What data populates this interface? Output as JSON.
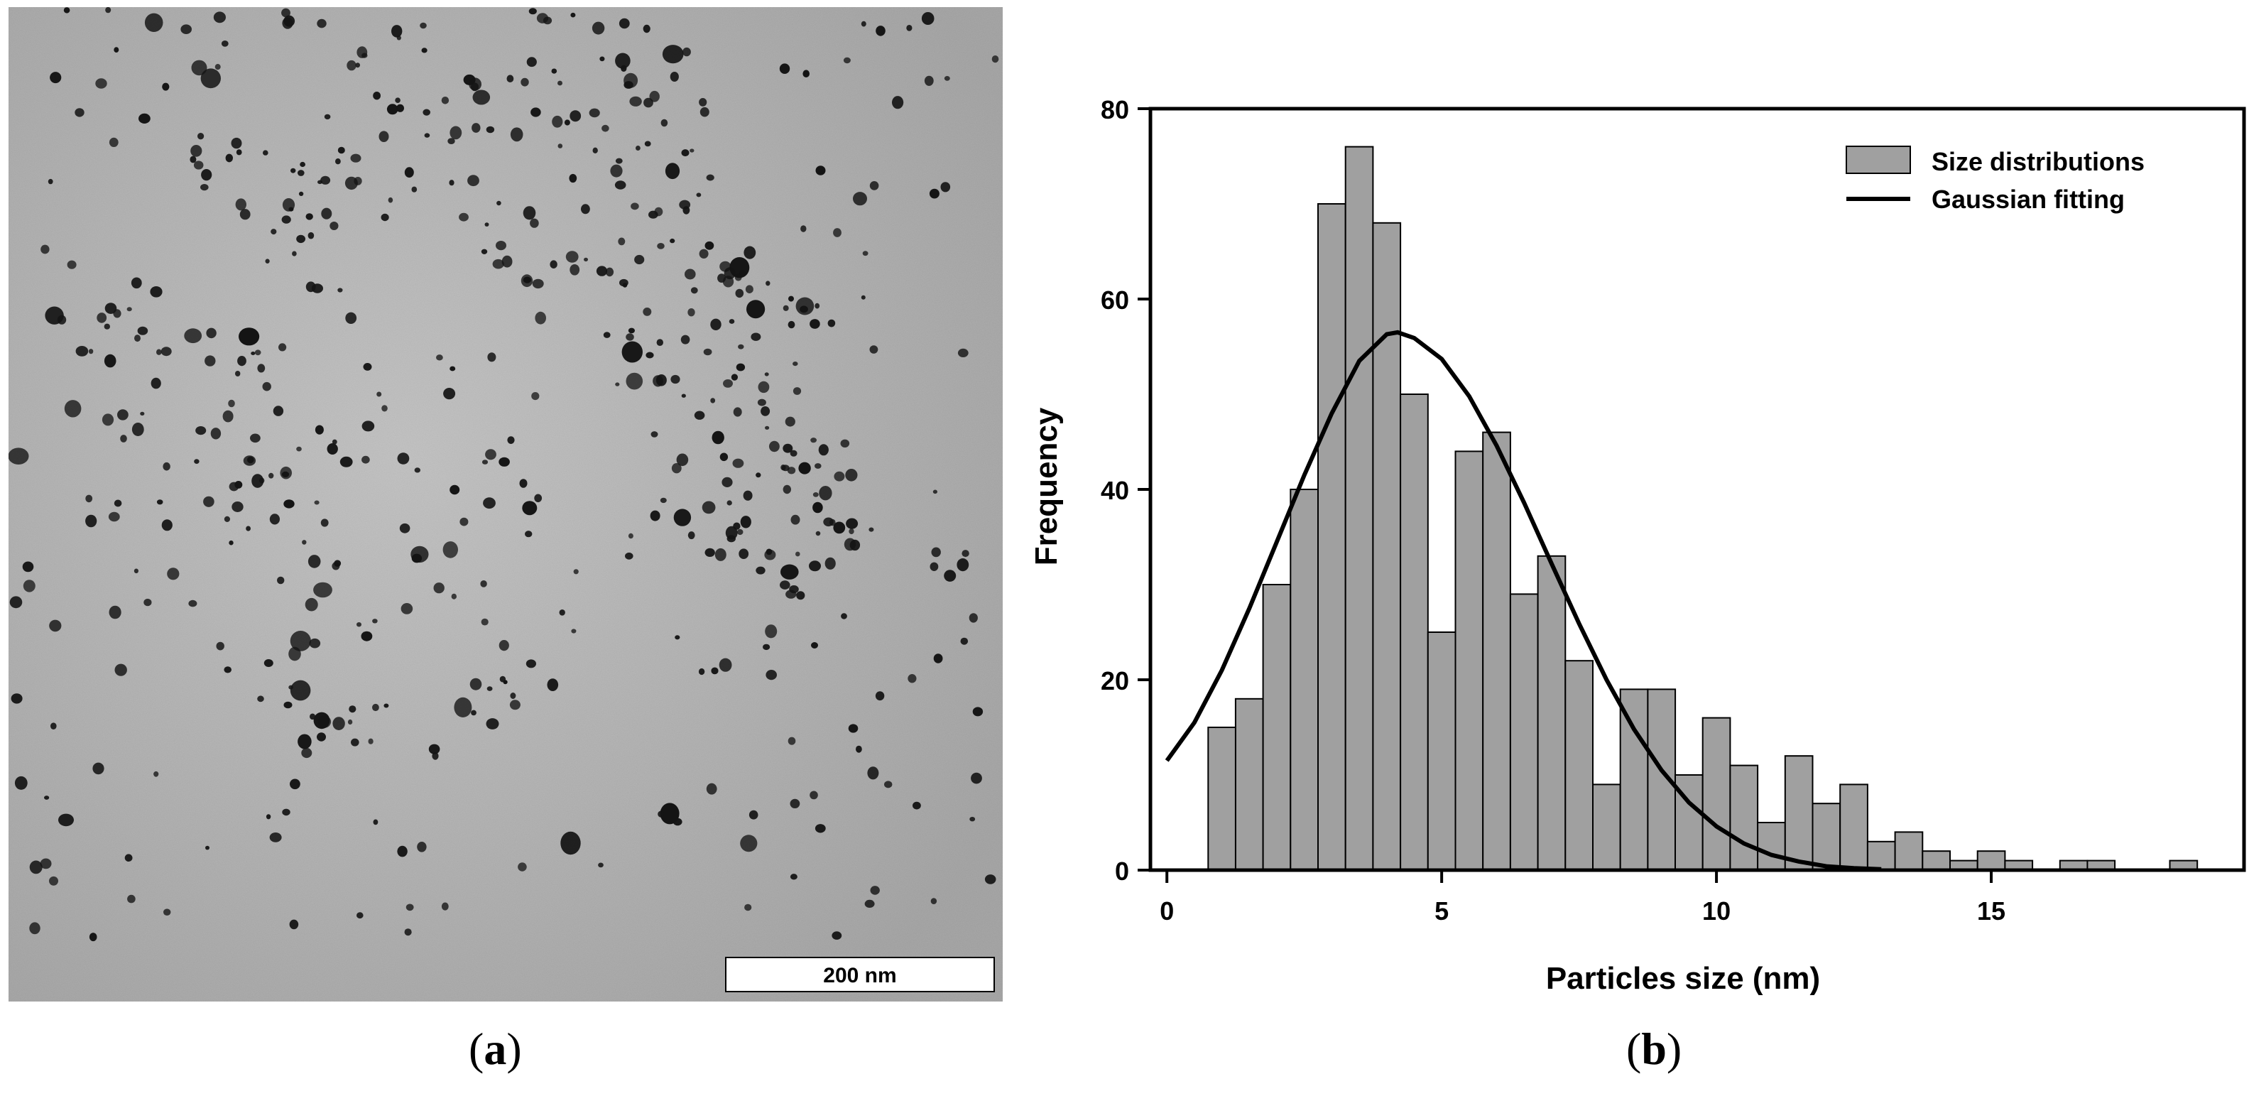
{
  "figure": {
    "panel_a_label": "a",
    "panel_b_label": "b"
  },
  "tem_image": {
    "scale_bar_label": "200 nm",
    "background_color": "#b9b9b9",
    "particle_color": "#141414"
  },
  "chart_data": {
    "type": "bar",
    "title": "",
    "xlabel": "Particles size (nm)",
    "ylabel": "Frequency",
    "xlim": [
      -0.3,
      19.6
    ],
    "ylim": [
      0,
      80
    ],
    "xticks": [
      0,
      5,
      10,
      15
    ],
    "yticks": [
      0,
      20,
      40,
      60,
      80
    ],
    "bin_width": 0.5,
    "bar_color": "#a0a0a0",
    "line_color": "#000000",
    "legend_position": "top-right",
    "series": [
      {
        "name": "Size distributions",
        "kind": "histogram",
        "bins_start": [
          0.75,
          1.25,
          1.75,
          2.25,
          2.75,
          3.25,
          3.75,
          4.25,
          4.75,
          5.25,
          5.75,
          6.25,
          6.75,
          7.25,
          7.75,
          8.25,
          8.75,
          9.25,
          9.75,
          10.25,
          10.75,
          11.25,
          11.75,
          12.25,
          12.75,
          13.25,
          13.75,
          14.25,
          14.75,
          15.25,
          15.75,
          16.25,
          16.75,
          17.25,
          17.75,
          18.25
        ],
        "values": [
          15,
          18,
          30,
          40,
          70,
          76,
          68,
          50,
          25,
          44,
          46,
          29,
          33,
          22,
          9,
          19,
          19,
          10,
          16,
          11,
          5,
          12,
          7,
          9,
          3,
          4,
          2,
          1,
          2,
          1,
          0,
          1,
          1,
          0,
          0,
          1
        ]
      },
      {
        "name": "Gaussian fitting",
        "kind": "line",
        "x": [
          0,
          0.5,
          1,
          1.5,
          2,
          2.5,
          3,
          3.5,
          4,
          4.2,
          4.5,
          5,
          5.5,
          6,
          6.5,
          7,
          7.5,
          8,
          8.5,
          9,
          9.5,
          10,
          10.5,
          11,
          11.5,
          12,
          12.5,
          13
        ],
        "y": [
          11.5,
          15.5,
          21,
          27.5,
          34.5,
          41.5,
          48,
          53.5,
          56.3,
          56.5,
          55.9,
          53.7,
          49.8,
          44.6,
          38.6,
          32.2,
          25.9,
          20,
          14.8,
          10.5,
          7.1,
          4.6,
          2.8,
          1.6,
          0.9,
          0.4,
          0.2,
          0.1
        ]
      }
    ]
  }
}
